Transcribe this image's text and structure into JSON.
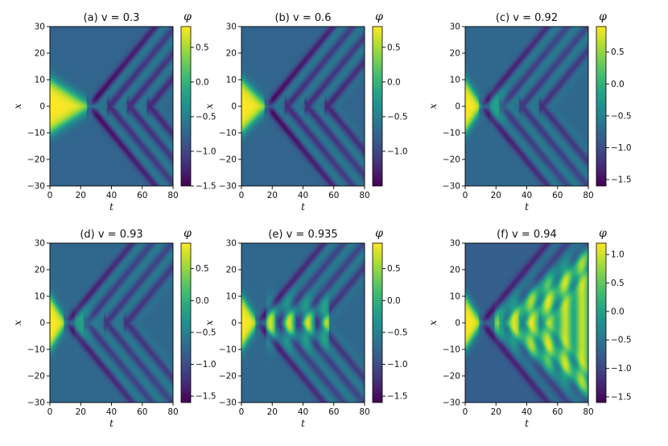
{
  "chart_data": [
    {
      "type": "heatmap",
      "panel": "a",
      "title": "(a) v = 0.3",
      "v": 0.3,
      "xlabel": "t",
      "ylabel": "x",
      "xlim": [
        0,
        80
      ],
      "ylim": [
        -30,
        30
      ],
      "xticks": [
        0,
        20,
        40,
        60,
        80
      ],
      "yticks": [
        -30,
        -20,
        -10,
        0,
        10,
        20,
        30
      ],
      "colorbar": {
        "label": "φ",
        "range": [
          -1.5,
          0.8
        ],
        "ticks": [
          -1.5,
          -1.0,
          -0.5,
          0.0,
          0.5
        ]
      },
      "features": {
        "collision_t": 26,
        "blob_t_end": 27,
        "blob_half_width": 10,
        "peak": 0.8
      }
    },
    {
      "type": "heatmap",
      "panel": "b",
      "title": "(b) v = 0.6",
      "v": 0.6,
      "xlabel": "t",
      "ylabel": "x",
      "xlim": [
        0,
        80
      ],
      "ylim": [
        -30,
        30
      ],
      "xticks": [
        0,
        20,
        40,
        60,
        80
      ],
      "yticks": [
        -30,
        -20,
        -10,
        0,
        10,
        20,
        30
      ],
      "colorbar": {
        "label": "φ",
        "range": [
          -1.5,
          0.8
        ],
        "ticks": [
          -1.0,
          -0.5,
          0.0,
          0.5
        ]
      },
      "features": {
        "collision_t": 17,
        "blob_t_end": 17,
        "blob_half_width": 10,
        "peak": 0.8
      }
    },
    {
      "type": "heatmap",
      "panel": "c",
      "title": "(c) v = 0.92",
      "v": 0.92,
      "xlabel": "t",
      "ylabel": "x",
      "xlim": [
        0,
        80
      ],
      "ylim": [
        -30,
        30
      ],
      "xticks": [
        0,
        20,
        40,
        60,
        80
      ],
      "yticks": [
        -30,
        -20,
        -10,
        0,
        10,
        20,
        30
      ],
      "colorbar": {
        "label": "φ",
        "range": [
          -1.6,
          0.9
        ],
        "ticks": [
          -1.5,
          -1.0,
          -0.5,
          0.0,
          0.5
        ]
      },
      "features": {
        "collision_t": 11,
        "blob_t_end": 11,
        "blob_half_width": 10,
        "peak": 0.9
      }
    },
    {
      "type": "heatmap",
      "panel": "d",
      "title": "(d) v = 0.93",
      "v": 0.93,
      "xlabel": "t",
      "ylabel": "x",
      "xlim": [
        0,
        80
      ],
      "ylim": [
        -30,
        30
      ],
      "xticks": [
        0,
        20,
        40,
        60,
        80
      ],
      "yticks": [
        -30,
        -20,
        -10,
        0,
        10,
        20,
        30
      ],
      "colorbar": {
        "label": "φ",
        "range": [
          -1.6,
          0.9
        ],
        "ticks": [
          -1.5,
          -1.0,
          -0.5,
          0.0,
          0.5
        ]
      },
      "features": {
        "collision_t": 11,
        "blob_t_end": 11,
        "blob_half_width": 10,
        "peak": 0.9
      }
    },
    {
      "type": "heatmap",
      "panel": "e",
      "title": "(e) v = 0.935",
      "v": 0.935,
      "xlabel": "t",
      "ylabel": "x",
      "xlim": [
        0,
        80
      ],
      "ylim": [
        -30,
        30
      ],
      "xticks": [
        0,
        20,
        40,
        60,
        80
      ],
      "yticks": [
        -30,
        -20,
        -10,
        0,
        10,
        20,
        30
      ],
      "colorbar": {
        "label": "φ",
        "range": [
          -1.6,
          0.9
        ],
        "ticks": [
          -1.5,
          -1.0,
          -0.5,
          0.0,
          0.5
        ]
      },
      "features": {
        "collision_t": 11,
        "blob_t_end": 11,
        "blob_half_width": 10,
        "peak": 0.9,
        "second_collision_t": 60
      }
    },
    {
      "type": "heatmap",
      "panel": "f",
      "title": "(f) v = 0.94",
      "v": 0.94,
      "xlabel": "t",
      "ylabel": "x",
      "xlim": [
        0,
        80
      ],
      "ylim": [
        -30,
        30
      ],
      "xticks": [
        0,
        20,
        40,
        60,
        80
      ],
      "yticks": [
        -30,
        -20,
        -10,
        0,
        10,
        20,
        30
      ],
      "colorbar": {
        "label": "φ",
        "range": [
          -1.6,
          1.2
        ],
        "ticks": [
          -1.5,
          -1.0,
          -0.5,
          0.0,
          0.5,
          1.0
        ]
      },
      "features": {
        "collision_t": 11,
        "blob_t_end": 11,
        "blob_half_width": 10,
        "peak": 1.2,
        "expanding_bubble": true
      }
    }
  ]
}
